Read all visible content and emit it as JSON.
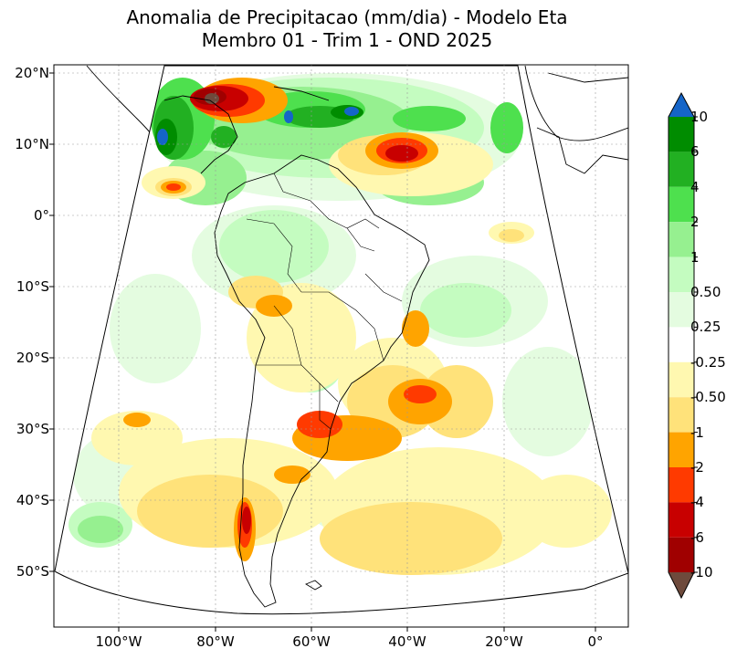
{
  "title": {
    "line1": "Anomalia de Precipitacao (mm/dia) - Modelo Eta",
    "line2": "Membro 01 - Trim 1 - OND 2025"
  },
  "axes": {
    "lat_labels": [
      "20°N",
      "10°N",
      "0°",
      "10°S",
      "20°S",
      "30°S",
      "40°S",
      "50°S"
    ],
    "lon_labels": [
      "100°W",
      "80°W",
      "60°W",
      "40°W",
      "20°W",
      "0°"
    ]
  },
  "colorbar": {
    "labels": [
      "10",
      "6",
      "4",
      "2",
      "1",
      "0.50",
      "0.25",
      "-0.25",
      "-0.50",
      "-1",
      "-2",
      "-4",
      "-6",
      "-10"
    ],
    "colors": {
      "over": "#1565c8",
      "c6_10": "#008c00",
      "c4_6": "#22b022",
      "c2_4": "#4ee04e",
      "c1_2": "#96f090",
      "c05_1": "#c4fcc0",
      "c025_05": "#e4fce0",
      "neutral": "#ffffff",
      "cm025_m05": "#fff8b0",
      "cm05_m1": "#ffe27a",
      "cm1_m2": "#ffa400",
      "cm2_m4": "#ff3a00",
      "cm4_m6": "#c80000",
      "cm6_m10": "#a00000",
      "under": "#6e4a3c"
    }
  }
}
